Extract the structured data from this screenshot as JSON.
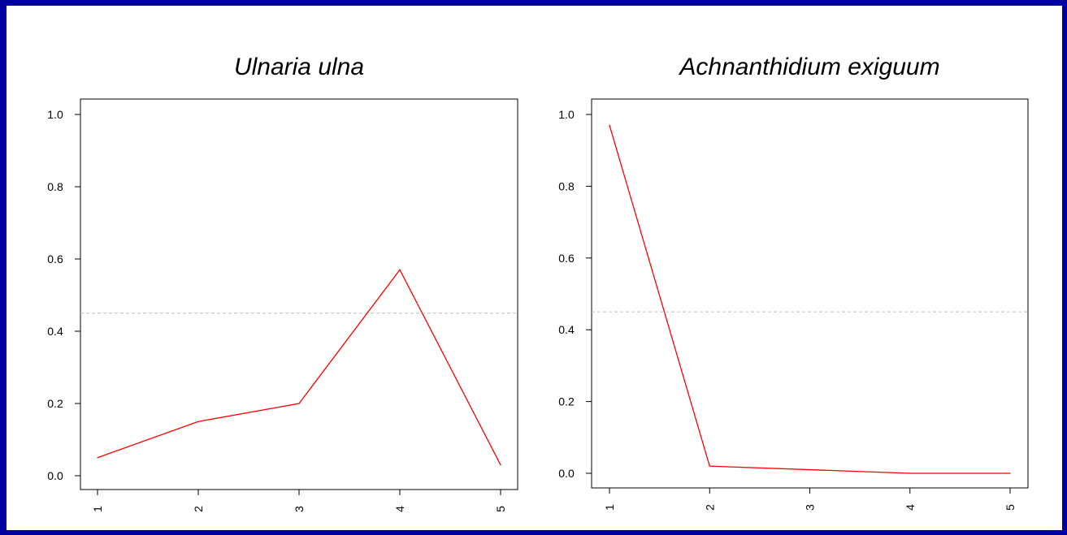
{
  "colors": {
    "border": "#0000a0",
    "line": "#ff0000",
    "reference": "#c0c0c0"
  },
  "chart_data": [
    {
      "type": "line",
      "title": "Ulnaria ulna",
      "xlabel": "",
      "ylabel": "",
      "x": [
        1,
        2,
        3,
        4,
        5
      ],
      "x_tick_labels": [
        "1",
        "2",
        "3",
        "4",
        "5"
      ],
      "series": [
        {
          "values": [
            0.05,
            0.15,
            0.2,
            0.57,
            0.03
          ]
        }
      ],
      "y_ticks": [
        "0.0",
        "0.2",
        "0.4",
        "0.6",
        "0.8",
        "1.0"
      ],
      "ylim": [
        0,
        1
      ],
      "reference_line": {
        "y": 0.45,
        "style": "dashed"
      },
      "grid": false
    },
    {
      "type": "line",
      "title": "Achnanthidium exiguum",
      "xlabel": "",
      "ylabel": "",
      "x": [
        1,
        2,
        3,
        4,
        5
      ],
      "x_tick_labels": [
        "1",
        "2",
        "3",
        "4",
        "5"
      ],
      "series": [
        {
          "values": [
            0.97,
            0.02,
            0.01,
            0.0,
            0.0
          ]
        }
      ],
      "y_ticks": [
        "0.0",
        "0.2",
        "0.4",
        "0.6",
        "0.8",
        "1.0"
      ],
      "ylim": [
        0,
        1
      ],
      "reference_line": {
        "y": 0.45,
        "style": "dashed"
      },
      "grid": false
    }
  ]
}
